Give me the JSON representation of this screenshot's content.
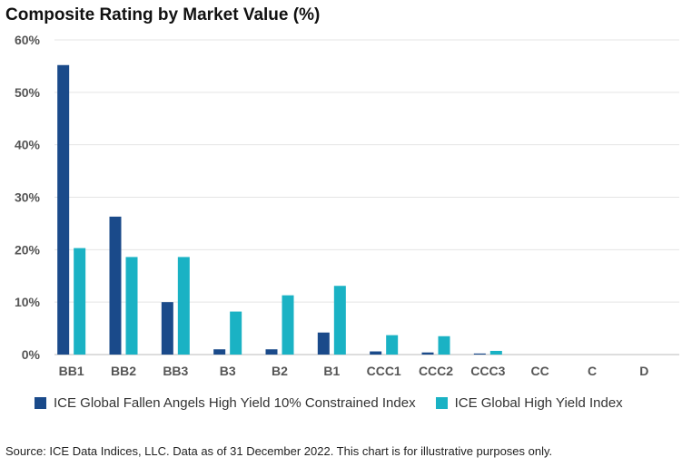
{
  "chart_data": {
    "type": "bar",
    "title": "Composite Rating by Market Value (%)",
    "categories": [
      "BB1",
      "BB2",
      "BB3",
      "B3",
      "B2",
      "B1",
      "CCC1",
      "CCC2",
      "CCC3",
      "CC",
      "C",
      "D"
    ],
    "series": [
      {
        "name": "ICE Global Fallen Angels High Yield 10% Constrained Index",
        "color": "#1a4a8a",
        "values": [
          55.2,
          26.3,
          10.0,
          1.0,
          1.0,
          4.2,
          0.6,
          0.4,
          0.2,
          0,
          0,
          0
        ]
      },
      {
        "name": "ICE Global High Yield Index",
        "color": "#1ab2c4",
        "values": [
          20.3,
          18.6,
          18.6,
          8.2,
          11.3,
          13.1,
          3.7,
          3.5,
          0.7,
          0,
          0,
          0
        ]
      }
    ],
    "yticks": [
      "0%",
      "10%",
      "20%",
      "30%",
      "40%",
      "50%",
      "60%"
    ],
    "ylim": [
      0,
      60
    ],
    "grid": true,
    "legend_position": "bottom"
  },
  "source": "Source: ICE Data Indices, LLC. Data as of 31 December 2022. This chart is for illustrative purposes only."
}
